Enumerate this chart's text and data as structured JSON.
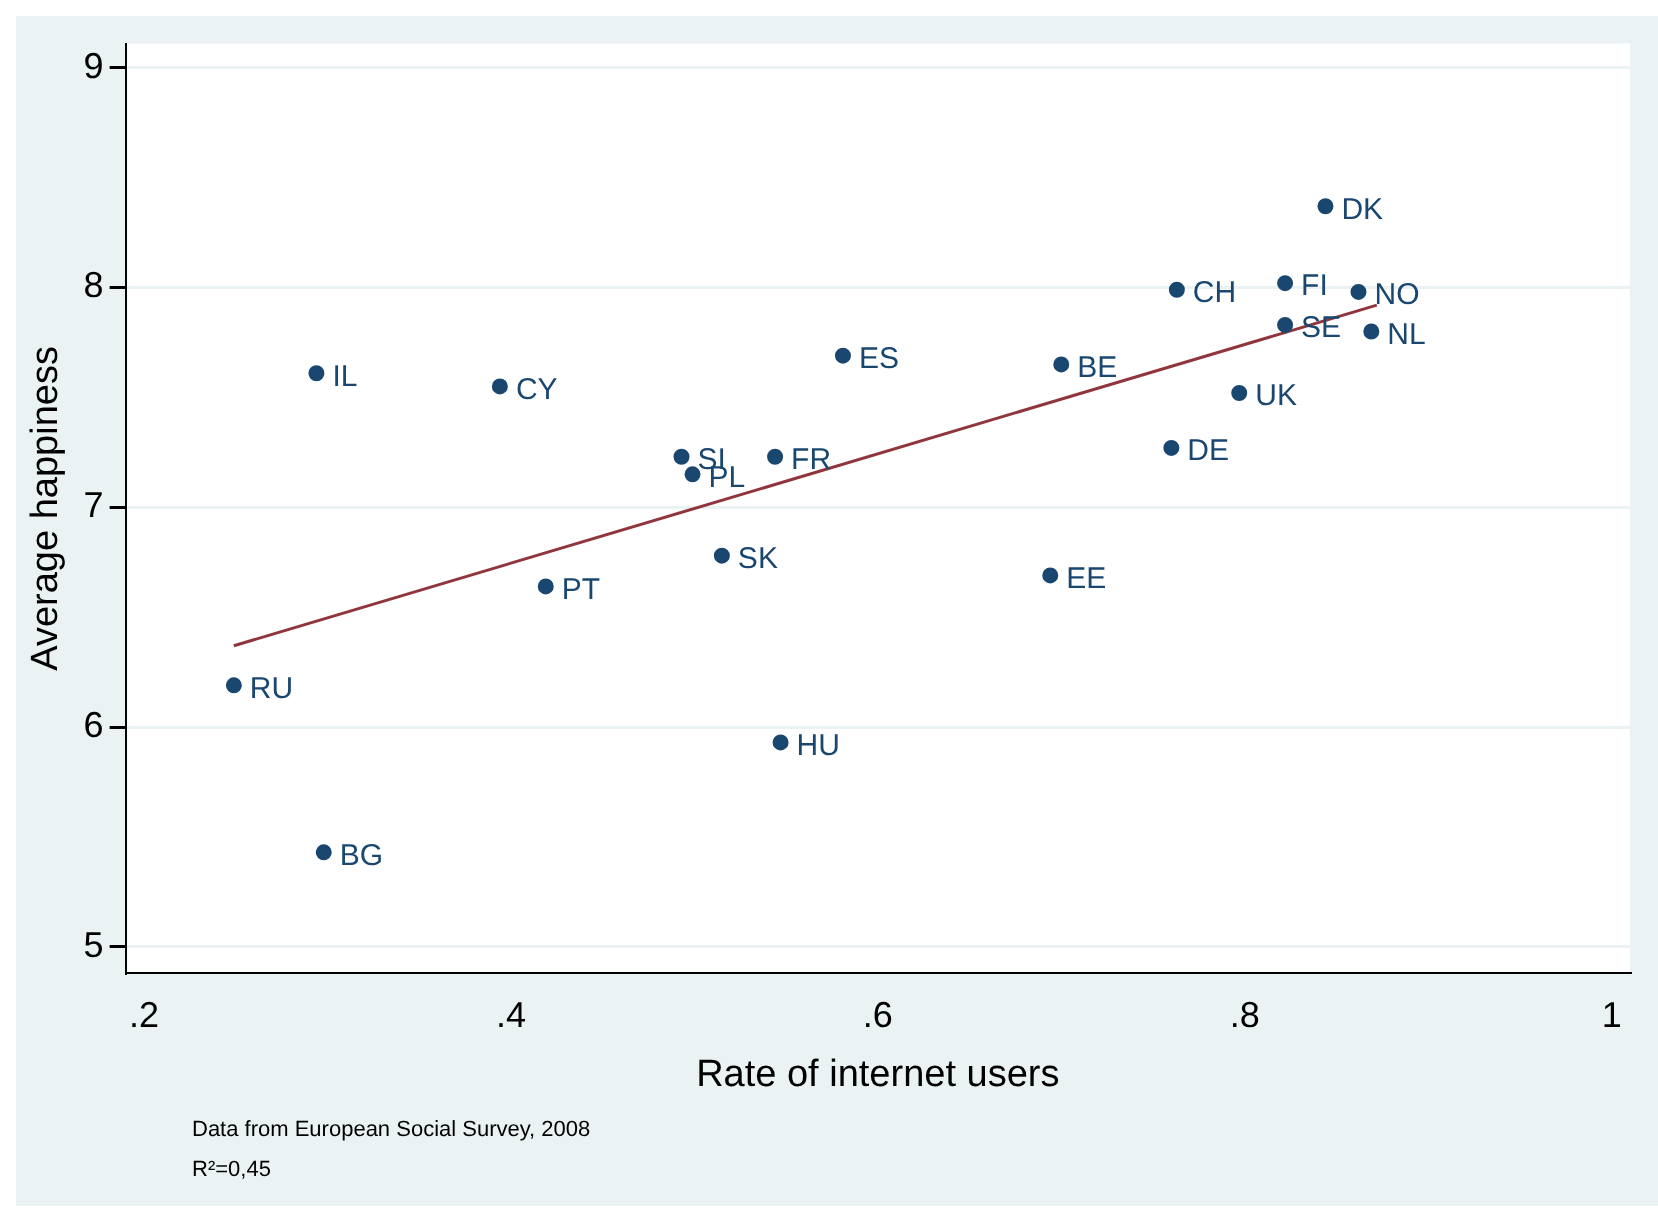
{
  "chart_data": {
    "type": "scatter",
    "xlabel": "Rate of internet users",
    "ylabel": "Average happiness",
    "xlim": [
      0.19,
      1.01
    ],
    "ylim": [
      4.88,
      9.11
    ],
    "xticks": [
      {
        "value": 0.2,
        "label": ".2"
      },
      {
        "value": 0.4,
        "label": ".4"
      },
      {
        "value": 0.6,
        "label": ".6"
      },
      {
        "value": 0.8,
        "label": ".8"
      },
      1
    ],
    "yticks": [
      5,
      6,
      7,
      8,
      9
    ],
    "grid": "y",
    "legend": false,
    "marker": "circle",
    "series": [
      {
        "color": "#1a476f",
        "x": [
          0.844,
          0.763,
          0.822,
          0.862,
          0.822,
          0.869,
          0.797,
          0.76,
          0.7,
          0.581,
          0.544,
          0.493,
          0.499,
          0.515,
          0.694,
          0.547,
          0.419,
          0.394,
          0.294,
          0.249,
          0.298
        ],
        "values": [
          8.37,
          7.99,
          8.02,
          7.98,
          7.83,
          7.8,
          7.52,
          7.27,
          7.65,
          7.69,
          7.23,
          7.23,
          7.15,
          6.78,
          6.69,
          5.93,
          6.64,
          7.55,
          7.61,
          6.19,
          5.43
        ]
      },
      {
        "type": "line",
        "marker": "none",
        "color": "#90353b",
        "x": [
          0.249,
          0.872
        ],
        "values": [
          6.37,
          7.92
        ]
      }
    ],
    "annotations": [
      {
        "text": "DK",
        "x": 0.844,
        "y": 8.37
      },
      {
        "text": "CH",
        "x": 0.763,
        "y": 7.99
      },
      {
        "text": "FI",
        "x": 0.822,
        "y": 8.02
      },
      {
        "text": "NO",
        "x": 0.862,
        "y": 7.98
      },
      {
        "text": "SE",
        "x": 0.822,
        "y": 7.83
      },
      {
        "text": "NL",
        "x": 0.869,
        "y": 7.8
      },
      {
        "text": "UK",
        "x": 0.797,
        "y": 7.52
      },
      {
        "text": "DE",
        "x": 0.76,
        "y": 7.27
      },
      {
        "text": "BE",
        "x": 0.7,
        "y": 7.65
      },
      {
        "text": "ES",
        "x": 0.581,
        "y": 7.69
      },
      {
        "text": "FR",
        "x": 0.544,
        "y": 7.23
      },
      {
        "text": "SI",
        "x": 0.493,
        "y": 7.23
      },
      {
        "text": "PL",
        "x": 0.499,
        "y": 7.15
      },
      {
        "text": "SK",
        "x": 0.515,
        "y": 6.78
      },
      {
        "text": "EE",
        "x": 0.694,
        "y": 6.69
      },
      {
        "text": "HU",
        "x": 0.547,
        "y": 5.93
      },
      {
        "text": "PT",
        "x": 0.419,
        "y": 6.64
      },
      {
        "text": "CY",
        "x": 0.394,
        "y": 7.55
      },
      {
        "text": "IL",
        "x": 0.294,
        "y": 7.61
      },
      {
        "text": "RU",
        "x": 0.249,
        "y": 6.19
      },
      {
        "text": "BG",
        "x": 0.298,
        "y": 5.43
      },
      "Data from European Social Survey, 2008",
      "R²=0,45"
    ]
  }
}
